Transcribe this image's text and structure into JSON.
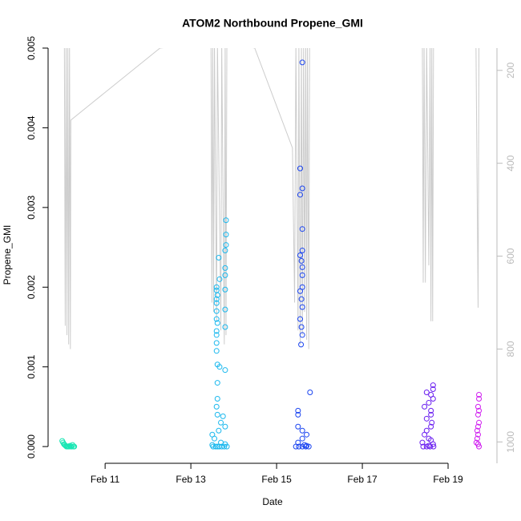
{
  "chart_data": {
    "type": "scatter",
    "title": "ATOM2 Northbound Propene_GMI",
    "x_label": "Date",
    "y_label": "Propene_GMI",
    "xlim": [
      9.67,
      20.14
    ],
    "xticks": [
      {
        "value": 11,
        "label": "Feb 11"
      },
      {
        "value": 13,
        "label": "Feb 13"
      },
      {
        "value": 15,
        "label": "Feb 15"
      },
      {
        "value": 17,
        "label": "Feb 17"
      },
      {
        "value": 19,
        "label": "Feb 19"
      }
    ],
    "ylim": [
      -0.00021,
      0.005
    ],
    "yticks": [
      {
        "value": 0,
        "label": "0.000"
      },
      {
        "value": 0.001,
        "label": "0.001"
      },
      {
        "value": 0.002,
        "label": "0.002"
      },
      {
        "value": 0.003,
        "label": "0.003"
      },
      {
        "value": 0.004,
        "label": "0.004"
      },
      {
        "value": 0.005,
        "label": "0.005"
      }
    ],
    "y2lim": [
      1046,
      152
    ],
    "y2ticks": [
      200,
      400,
      600,
      800,
      1000
    ],
    "y2color": "#bbbbbb",
    "series": [
      {
        "type": "line",
        "axis": "y2",
        "color": "#cccccc",
        "x": [
          10.05,
          10.07,
          10.09,
          10.11,
          10.13,
          10.15,
          10.17,
          10.19,
          10.2,
          12.28,
          13.47,
          13.49,
          13.51,
          13.53,
          13.55,
          13.6,
          13.62,
          13.7,
          13.72,
          13.78,
          13.8,
          13.82,
          13.84,
          14.49,
          15.37,
          15.42,
          15.45,
          15.5,
          15.52,
          15.55,
          15.58,
          15.6,
          15.63,
          15.65,
          15.68,
          15.7,
          15.72,
          15.75,
          15.77,
          18.4,
          18.42,
          18.44,
          18.47,
          18.5,
          18.55,
          18.58,
          18.6,
          18.62,
          18.64,
          18.66,
          19.65,
          19.7,
          19.72
        ],
        "values": [
          140,
          750,
          140,
          770,
          140,
          790,
          140,
          800,
          307,
          152,
          140,
          700,
          140,
          720,
          140,
          740,
          140,
          760,
          140,
          790,
          140,
          770,
          140,
          152,
          367,
          700,
          140,
          760,
          140,
          790,
          140,
          770,
          140,
          720,
          140,
          780,
          140,
          800,
          140,
          140,
          657,
          140,
          657,
          140,
          620,
          140,
          740,
          140,
          740,
          140,
          140,
          711,
          140
        ]
      },
      {
        "color": "#19e6b4",
        "x": [
          10.0,
          10.02,
          10.04,
          10.06,
          10.08,
          10.1,
          10.12,
          10.14,
          10.16,
          10.18,
          10.2,
          10.22,
          10.24,
          10.26,
          10.28
        ],
        "values": [
          7e-05,
          5e-05,
          3e-05,
          2e-05,
          1e-05,
          0,
          0,
          0,
          0,
          1e-05,
          0,
          0,
          2e-05,
          0,
          0
        ]
      },
      {
        "color": "#1ab8ee",
        "x": [
          13.82,
          13.82,
          13.82,
          13.8,
          13.65,
          13.8,
          13.8,
          13.67,
          13.8,
          13.6,
          13.6,
          13.62,
          13.6,
          13.6,
          13.8,
          13.6,
          13.6,
          13.62,
          13.8,
          13.6,
          13.6,
          13.6,
          13.6,
          13.62,
          13.67,
          13.8,
          13.62,
          13.62,
          13.6,
          13.62,
          13.75,
          13.7,
          13.8,
          13.65,
          13.5,
          13.55,
          13.7,
          13.5,
          13.52,
          13.58,
          13.66,
          13.72,
          13.78,
          13.84,
          13.8,
          13.62
        ],
        "values": [
          0.00284,
          0.00266,
          0.00253,
          0.00246,
          0.00237,
          0.00224,
          0.00215,
          0.0021,
          0.00197,
          0.002,
          0.00196,
          0.0019,
          0.00185,
          0.0018,
          0.00172,
          0.0017,
          0.0016,
          0.00155,
          0.0015,
          0.00145,
          0.0014,
          0.0013,
          0.0012,
          0.00103,
          0.001,
          0.00096,
          0.0008,
          0.0006,
          0.0005,
          0.0004,
          0.00038,
          0.0003,
          0.00025,
          0.0002,
          0.00015,
          0.0001,
          5e-05,
          2e-05,
          0,
          0,
          0,
          0,
          0,
          0,
          3e-05,
          0
        ]
      },
      {
        "color": "#1a44f0",
        "x": [
          15.6,
          15.55,
          15.6,
          15.55,
          15.6,
          15.6,
          15.55,
          15.58,
          15.6,
          15.6,
          15.6,
          15.55,
          15.58,
          15.6,
          15.55,
          15.58,
          15.6,
          15.57,
          15.78,
          15.5,
          15.5,
          15.5,
          15.6,
          15.7,
          15.6,
          15.5,
          15.45,
          15.52,
          15.6,
          15.68,
          15.75,
          15.65,
          15.7
        ],
        "values": [
          0.00482,
          0.00349,
          0.00324,
          0.00316,
          0.00273,
          0.00246,
          0.0024,
          0.00233,
          0.00225,
          0.00215,
          0.002,
          0.00195,
          0.00185,
          0.00175,
          0.0016,
          0.0015,
          0.0014,
          0.00128,
          0.00068,
          0.00045,
          0.0004,
          0.00025,
          0.0002,
          0.00015,
          0.0001,
          5e-05,
          0,
          0,
          0,
          0,
          0,
          2e-05,
          1e-05
        ]
      },
      {
        "color": "#6a1ef0",
        "x": [
          18.65,
          18.65,
          18.5,
          18.6,
          18.65,
          18.55,
          18.45,
          18.6,
          18.6,
          18.5,
          18.62,
          18.6,
          18.5,
          18.45,
          18.55,
          18.6,
          18.4,
          18.65,
          18.42,
          18.5,
          18.58,
          18.66,
          18.55
        ],
        "values": [
          0.00077,
          0.00072,
          0.00068,
          0.00065,
          0.0006,
          0.00055,
          0.0005,
          0.00045,
          0.0004,
          0.00035,
          0.0003,
          0.00025,
          0.0002,
          0.00015,
          0.0001,
          8e-05,
          5e-05,
          3e-05,
          0,
          0,
          0,
          0,
          1e-05
        ]
      },
      {
        "color": "#d01ef0",
        "x": [
          19.72,
          19.72,
          19.7,
          19.72,
          19.7,
          19.72,
          19.7,
          19.68,
          19.7,
          19.68,
          19.66,
          19.7,
          19.72
        ],
        "values": [
          0.00065,
          0.0006,
          0.0005,
          0.00045,
          0.0004,
          0.0003,
          0.00025,
          0.0002,
          0.00015,
          0.0001,
          5e-05,
          3e-05,
          0
        ]
      }
    ]
  }
}
